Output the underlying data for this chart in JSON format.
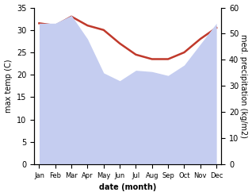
{
  "months": [
    "Jan",
    "Feb",
    "Mar",
    "Apr",
    "May",
    "Jun",
    "Jul",
    "Aug",
    "Sep",
    "Oct",
    "Nov",
    "Dec"
  ],
  "temp": [
    31.5,
    31.0,
    33.0,
    31.0,
    30.0,
    27.0,
    24.5,
    23.5,
    23.5,
    25.0,
    28.0,
    30.5
  ],
  "precip": [
    54.0,
    54.0,
    57.0,
    48.0,
    35.0,
    32.0,
    36.0,
    35.5,
    34.0,
    38.0,
    46.0,
    54.0
  ],
  "temp_color": "#c0392b",
  "precip_fill_color": "#c5cdf0",
  "temp_ylim": [
    0,
    35
  ],
  "precip_ylim": [
    0,
    60
  ],
  "temp_yticks": [
    0,
    5,
    10,
    15,
    20,
    25,
    30,
    35
  ],
  "precip_yticks": [
    0,
    10,
    20,
    30,
    40,
    50,
    60
  ],
  "xlabel": "date (month)",
  "ylabel_left": "max temp (C)",
  "ylabel_right": "med. precipitation (kg/m2)",
  "background_color": "#ffffff",
  "temp_linewidth": 1.8,
  "label_fontsize": 7,
  "tick_fontsize": 7,
  "xlabel_fontsize": 7
}
